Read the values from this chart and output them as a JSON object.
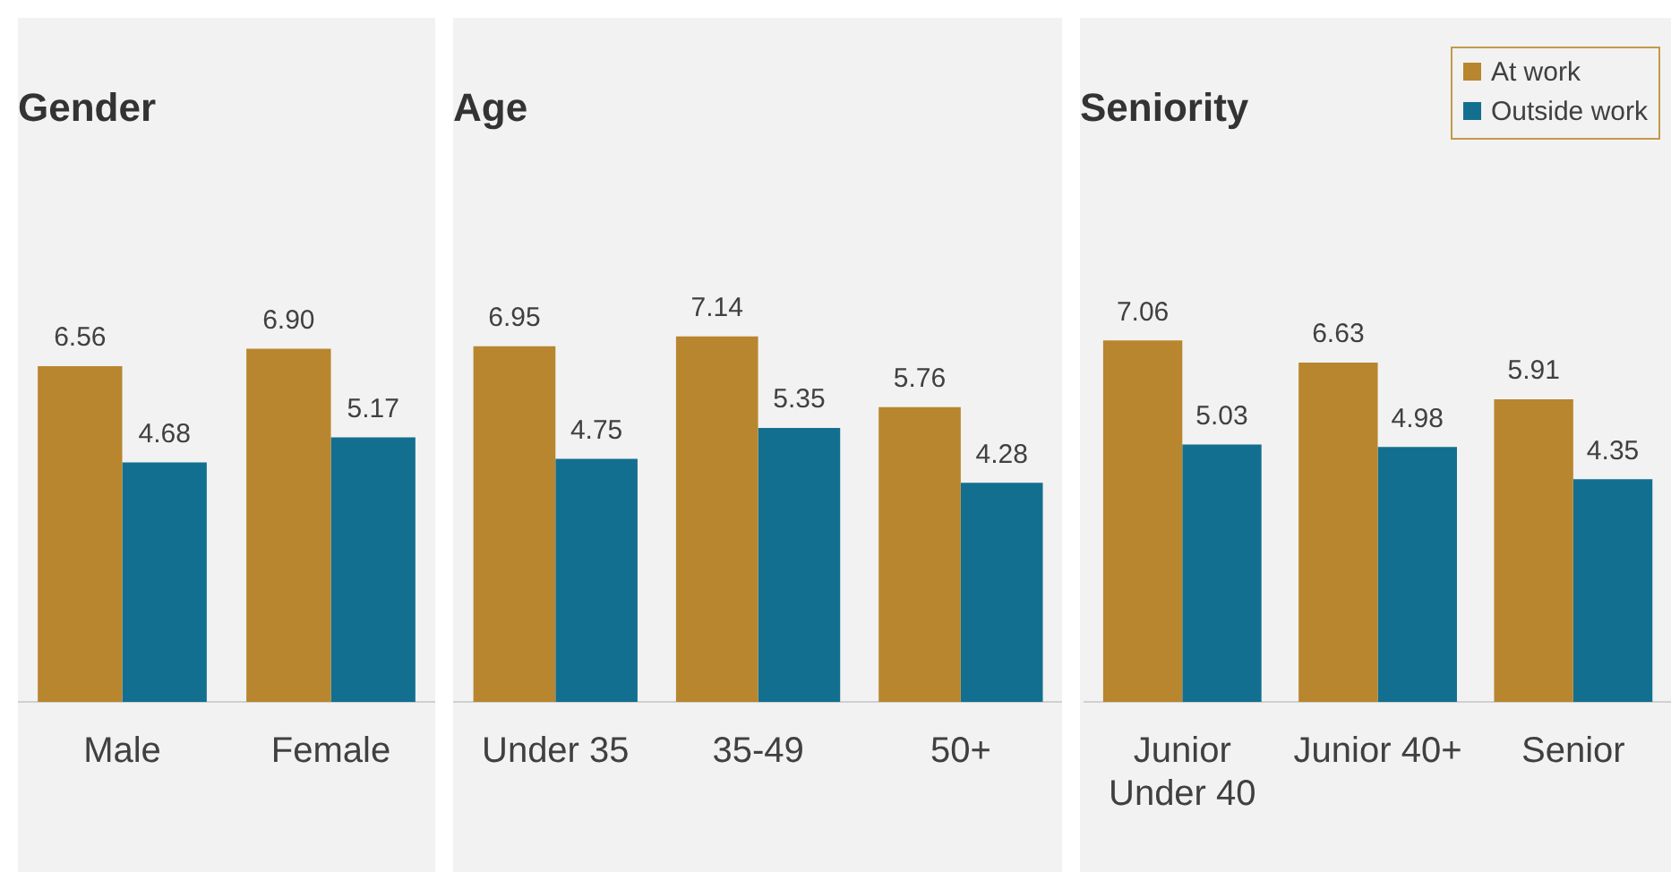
{
  "chart_data": [
    {
      "type": "bar",
      "title": "Gender",
      "categories": [
        "Male",
        "Female"
      ],
      "series": [
        {
          "color": "#b8862e",
          "values": [
            6.56,
            6.9
          ],
          "value_labels": [
            "6.56",
            "6.90"
          ]
        },
        {
          "color": "#136f8f",
          "values": [
            4.68,
            5.17
          ],
          "value_labels": [
            "4.68",
            "5.17"
          ]
        }
      ]
    },
    {
      "type": "bar",
      "title": "Age",
      "categories": [
        "Under 35",
        "35-49",
        "50+"
      ],
      "series": [
        {
          "color": "#b8862e",
          "values": [
            6.95,
            7.14,
            5.76
          ],
          "value_labels": [
            "6.95",
            "7.14",
            "5.76"
          ]
        },
        {
          "color": "#136f8f",
          "values": [
            4.75,
            5.35,
            4.28
          ],
          "value_labels": [
            "4.75",
            "5.35",
            "4.28"
          ]
        }
      ]
    },
    {
      "type": "bar",
      "title": "Seniority",
      "categories": [
        "Junior Under 40",
        "Junior 40+",
        "Senior"
      ],
      "legend": "top right",
      "series": [
        {
          "name": "At work",
          "color": "#b8862e",
          "values": [
            7.06,
            6.63,
            5.91
          ],
          "value_labels": [
            "7.06",
            "6.63",
            "5.91"
          ]
        },
        {
          "name": "Outside work",
          "color": "#136f8f",
          "values": [
            5.03,
            4.98,
            4.35
          ],
          "value_labels": [
            "5.03",
            "4.98",
            "4.35"
          ]
        }
      ]
    }
  ]
}
